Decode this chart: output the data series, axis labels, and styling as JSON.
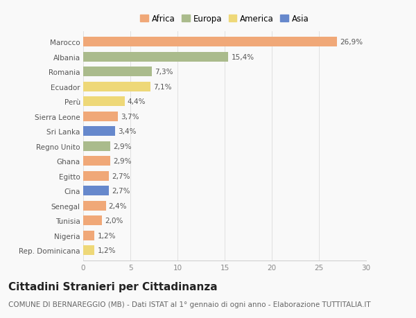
{
  "categories": [
    "Marocco",
    "Albania",
    "Romania",
    "Ecuador",
    "Perù",
    "Sierra Leone",
    "Sri Lanka",
    "Regno Unito",
    "Ghana",
    "Egitto",
    "Cina",
    "Senegal",
    "Tunisia",
    "Nigeria",
    "Rep. Dominicana"
  ],
  "values": [
    26.9,
    15.4,
    7.3,
    7.1,
    4.4,
    3.7,
    3.4,
    2.9,
    2.9,
    2.7,
    2.7,
    2.4,
    2.0,
    1.2,
    1.2
  ],
  "labels": [
    "26,9%",
    "15,4%",
    "7,3%",
    "7,1%",
    "4,4%",
    "3,7%",
    "3,4%",
    "2,9%",
    "2,9%",
    "2,7%",
    "2,7%",
    "2,4%",
    "2,0%",
    "1,2%",
    "1,2%"
  ],
  "continents": [
    "Africa",
    "Europa",
    "Europa",
    "America",
    "America",
    "Africa",
    "Asia",
    "Europa",
    "Africa",
    "Africa",
    "Asia",
    "Africa",
    "Africa",
    "Africa",
    "America"
  ],
  "colors": {
    "Africa": "#F0A878",
    "Europa": "#AABB8C",
    "America": "#EED878",
    "Asia": "#6688CC"
  },
  "legend_order": [
    "Africa",
    "Europa",
    "America",
    "Asia"
  ],
  "xlim": [
    0,
    30
  ],
  "xticks": [
    0,
    5,
    10,
    15,
    20,
    25,
    30
  ],
  "title": "Cittadini Stranieri per Cittadinanza",
  "subtitle": "COMUNE DI BERNAREGGIO (MB) - Dati ISTAT al 1° gennaio di ogni anno - Elaborazione TUTTITALIA.IT",
  "background_color": "#f9f9f9",
  "bar_height": 0.65,
  "title_fontsize": 11,
  "subtitle_fontsize": 7.5,
  "label_fontsize": 7.5,
  "tick_fontsize": 7.5,
  "legend_fontsize": 8.5
}
